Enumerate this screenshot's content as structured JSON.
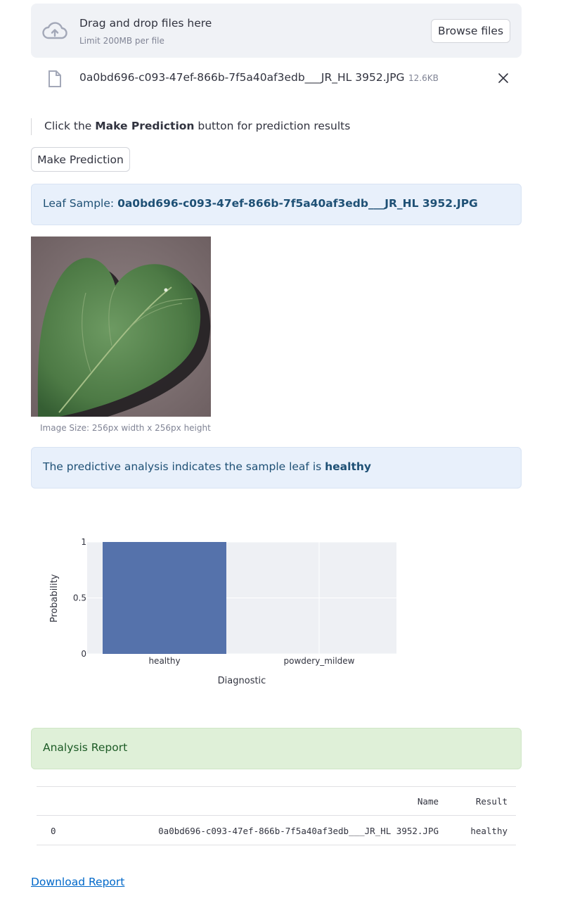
{
  "uploader": {
    "title": "Drag and drop files here",
    "limit": "Limit 200MB per file",
    "browse_label": "Browse files",
    "file_name": "0a0bd696-c093-47ef-866b-7f5a40af3edb___JR_HL 3952.JPG",
    "file_size": "12.6KB"
  },
  "instruction": {
    "prefix": "Click the ",
    "bold": "Make Prediction",
    "suffix": " button for prediction results"
  },
  "predict_button": {
    "label": "Make Prediction"
  },
  "leaf_sample": {
    "prefix": "Leaf Sample: ",
    "name": "0a0bd696-c093-47ef-866b-7f5a40af3edb___JR_HL 3952.JPG"
  },
  "image_caption": "Image Size: 256px width x 256px height",
  "prediction": {
    "prefix": "The predictive analysis indicates the sample leaf is ",
    "result": "healthy"
  },
  "chart_data": {
    "type": "bar",
    "categories": [
      "healthy",
      "powdery_mildew"
    ],
    "values": [
      1,
      0
    ],
    "xlabel": "Diagnostic",
    "ylabel": "Probability",
    "ylim": [
      0,
      1
    ],
    "yticks": [
      "0",
      "0.5",
      "1"
    ],
    "grid": true,
    "bar_color": "#5572ab"
  },
  "report": {
    "title": "Analysis Report",
    "columns": [
      "",
      "Name",
      "Result"
    ],
    "rows": [
      {
        "index": "0",
        "name": "0a0bd696-c093-47ef-866b-7f5a40af3edb___JR_HL 3952.JPG",
        "result": "healthy"
      }
    ],
    "download_label": "Download Report"
  },
  "colors": {
    "accent_link": "#0068c9",
    "info_bg": "#e8f0fb",
    "success_bg": "#dff0d8",
    "panel_bg": "#f0f2f6"
  }
}
